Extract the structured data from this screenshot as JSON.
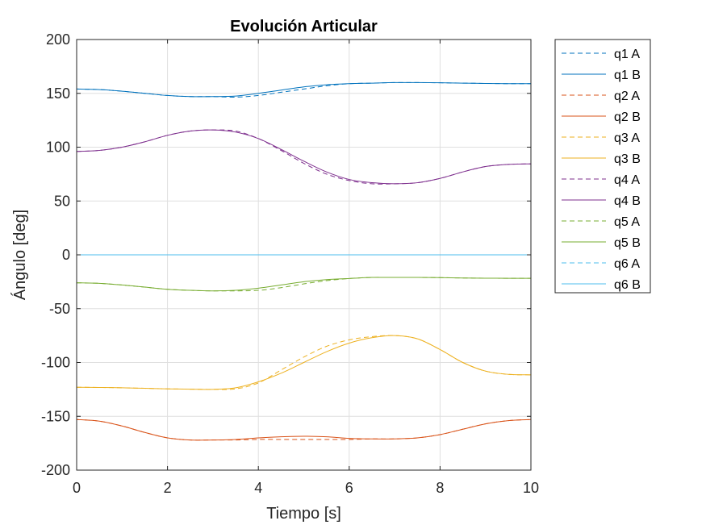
{
  "chart_data": {
    "type": "line",
    "title": "Evolución Articular",
    "xlabel": "Tiempo [s]",
    "ylabel": "Ángulo [deg]",
    "xlim": [
      0,
      10
    ],
    "ylim": [
      -200,
      200
    ],
    "xticks": [
      0,
      2,
      4,
      6,
      8,
      10
    ],
    "yticks": [
      -200,
      -150,
      -100,
      -50,
      0,
      50,
      100,
      150,
      200
    ],
    "grid": true,
    "legend_position": "outside-right",
    "x": [
      0,
      0.5,
      1,
      1.5,
      2,
      2.5,
      3,
      3.5,
      4,
      4.5,
      5,
      5.5,
      6,
      6.5,
      7,
      7.5,
      8,
      8.5,
      9,
      9.5,
      10
    ],
    "series": [
      {
        "name": "q1 A",
        "color": "#0072BD",
        "dash": true,
        "values": [
          154,
          153.5,
          152,
          150,
          148,
          147,
          147,
          146.5,
          148,
          151,
          154,
          157,
          159,
          159.5,
          160,
          160,
          159.8,
          159.5,
          159.2,
          159,
          159
        ]
      },
      {
        "name": "q1 B",
        "color": "#0072BD",
        "dash": false,
        "values": [
          154,
          153.5,
          152,
          150,
          148,
          147,
          147,
          147.5,
          150,
          153,
          156,
          158,
          159,
          159.5,
          160,
          160,
          159.8,
          159.5,
          159.2,
          159,
          159
        ]
      },
      {
        "name": "q2 A",
        "color": "#D95319",
        "dash": true,
        "values": [
          -153,
          -154.5,
          -159,
          -165,
          -170,
          -172,
          -172,
          -172,
          -171.5,
          -171.5,
          -171.5,
          -171.5,
          -171.5,
          -171,
          -171,
          -170,
          -167,
          -162,
          -157,
          -154,
          -153
        ]
      },
      {
        "name": "q2 B",
        "color": "#D95319",
        "dash": false,
        "values": [
          -153,
          -154.5,
          -159,
          -165,
          -170,
          -172,
          -172,
          -171.5,
          -170,
          -169,
          -168.5,
          -169,
          -170.5,
          -171,
          -171,
          -170,
          -167,
          -162,
          -157,
          -154,
          -153
        ]
      },
      {
        "name": "q3 A",
        "color": "#EDB120",
        "dash": true,
        "values": [
          -123,
          -123.2,
          -123.5,
          -124,
          -124.5,
          -124.8,
          -125,
          -124.5,
          -119,
          -107,
          -95,
          -85,
          -79,
          -76,
          -75,
          -78,
          -88,
          -100,
          -108,
          -111,
          -111.5
        ]
      },
      {
        "name": "q3 B",
        "color": "#EDB120",
        "dash": false,
        "values": [
          -123,
          -123.2,
          -123.5,
          -124,
          -124.5,
          -124.8,
          -125,
          -123.5,
          -118,
          -110,
          -100,
          -90,
          -82,
          -77,
          -75,
          -78,
          -88,
          -100,
          -108,
          -111,
          -111.5
        ]
      },
      {
        "name": "q4 A",
        "color": "#7E2F8E",
        "dash": true,
        "values": [
          96,
          97,
          100,
          105,
          111,
          115,
          116,
          115,
          108,
          97,
          85,
          75,
          69,
          66,
          66,
          67,
          71,
          77,
          82,
          84,
          84.5
        ]
      },
      {
        "name": "q4 B",
        "color": "#7E2F8E",
        "dash": false,
        "values": [
          96,
          97,
          100,
          105,
          111,
          115,
          116,
          114,
          108,
          98,
          87,
          77,
          70,
          67,
          66,
          67,
          71,
          77,
          82,
          84,
          84.5
        ]
      },
      {
        "name": "q5 A",
        "color": "#77AC30",
        "dash": true,
        "values": [
          -26,
          -26.5,
          -28,
          -30,
          -32,
          -33,
          -33.5,
          -33.5,
          -33,
          -30.5,
          -27,
          -24,
          -22,
          -21,
          -21,
          -21,
          -21.2,
          -21.5,
          -21.7,
          -21.8,
          -21.8
        ]
      },
      {
        "name": "q5 B",
        "color": "#77AC30",
        "dash": false,
        "values": [
          -26,
          -26.5,
          -28,
          -30,
          -32,
          -33,
          -33.5,
          -33,
          -31,
          -28,
          -25,
          -23,
          -22,
          -21,
          -21,
          -21,
          -21.2,
          -21.5,
          -21.7,
          -21.8,
          -21.8
        ]
      },
      {
        "name": "q6 A",
        "color": "#4DBEEE",
        "dash": true,
        "values": [
          0,
          0,
          0,
          0,
          0,
          0,
          0,
          0,
          0,
          0,
          0,
          0,
          0,
          0,
          0,
          0,
          0,
          0,
          0,
          0,
          0
        ]
      },
      {
        "name": "q6 B",
        "color": "#4DBEEE",
        "dash": false,
        "values": [
          0,
          0,
          0,
          0,
          0,
          0,
          0,
          0,
          0,
          0,
          0,
          0,
          0,
          0,
          0,
          0,
          0,
          0,
          0,
          0,
          0
        ]
      }
    ]
  }
}
